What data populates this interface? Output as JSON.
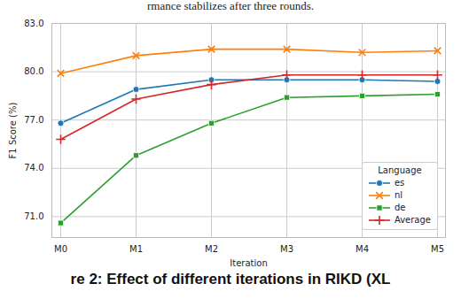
{
  "chart_data": {
    "type": "line",
    "annotations": [
      "rmance stabilizes after three rounds."
    ],
    "caption": "re 2: Effect of different iterations in RIKD (XL",
    "x_label": "Iteration",
    "y_label": "F1 Score (%)",
    "categories": [
      "M0",
      "M1",
      "M2",
      "M3",
      "M4",
      "M5"
    ],
    "series": [
      {
        "name": "es",
        "color": "#1f77b4",
        "marker": "circle",
        "values": [
          76.8,
          78.9,
          79.5,
          79.5,
          79.5,
          79.4
        ]
      },
      {
        "name": "nl",
        "color": "#ff7f0e",
        "marker": "x",
        "values": [
          79.9,
          81.0,
          81.4,
          81.4,
          81.2,
          81.3
        ]
      },
      {
        "name": "de",
        "color": "#2ca02c",
        "marker": "square",
        "values": [
          70.6,
          74.8,
          76.8,
          78.4,
          78.5,
          78.6
        ]
      },
      {
        "name": "Average",
        "color": "#d62728",
        "marker": "plus",
        "values": [
          75.8,
          78.3,
          79.2,
          79.8,
          79.8,
          79.8
        ]
      }
    ],
    "legend_title": "Language",
    "legend": "lower right",
    "grid": true,
    "ylim": [
      69.7,
      83.0
    ],
    "yticks": [
      {
        "value": 71,
        "label": "71.0"
      },
      {
        "value": 74,
        "label": "74.0"
      },
      {
        "value": 77,
        "label": "77.0"
      },
      {
        "value": 80,
        "label": "80.0"
      },
      {
        "value": 83,
        "label": "83.0"
      }
    ]
  }
}
